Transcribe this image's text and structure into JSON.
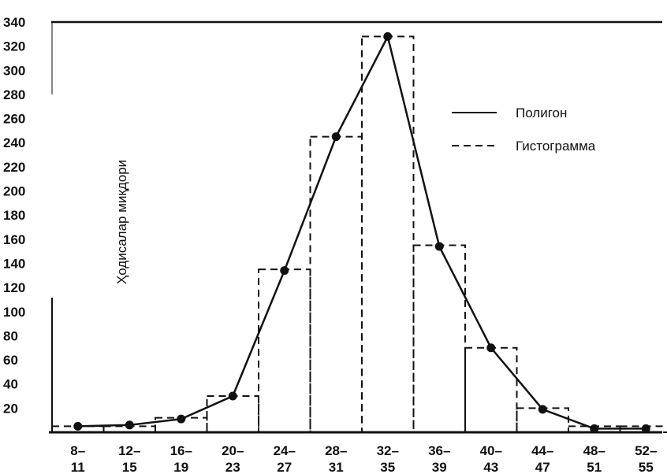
{
  "chart_data": {
    "type": "bar",
    "title": "",
    "xlabel": "",
    "ylabel": "Ҳодисалар миқдори",
    "ylim": [
      0,
      340
    ],
    "yticks": [
      20,
      40,
      60,
      80,
      100,
      120,
      140,
      160,
      180,
      200,
      220,
      240,
      260,
      280,
      300,
      320,
      340
    ],
    "categories": [
      [
        "8–",
        "11"
      ],
      [
        "12–",
        "15"
      ],
      [
        "16–",
        "19"
      ],
      [
        "20–",
        "23"
      ],
      [
        "24–",
        "27"
      ],
      [
        "28–",
        "31"
      ],
      [
        "32–",
        "35"
      ],
      [
        "36–",
        "39"
      ],
      [
        "40–",
        "43"
      ],
      [
        "44–",
        "47"
      ],
      [
        "48–",
        "51"
      ],
      [
        "52–",
        "55"
      ]
    ],
    "series": [
      {
        "name": "Гистограмма",
        "style": "dashed-bars",
        "values": [
          5,
          5,
          12,
          30,
          135,
          245,
          328,
          155,
          70,
          20,
          5,
          5
        ]
      },
      {
        "name": "Полигон",
        "style": "solid-line-markers",
        "values": [
          5,
          6,
          11,
          30,
          134,
          245,
          328,
          154,
          70,
          19,
          3,
          3
        ]
      }
    ],
    "legend_position": "right",
    "grid": false,
    "colors": {
      "ink": "#111111",
      "background": "#ffffff"
    }
  }
}
